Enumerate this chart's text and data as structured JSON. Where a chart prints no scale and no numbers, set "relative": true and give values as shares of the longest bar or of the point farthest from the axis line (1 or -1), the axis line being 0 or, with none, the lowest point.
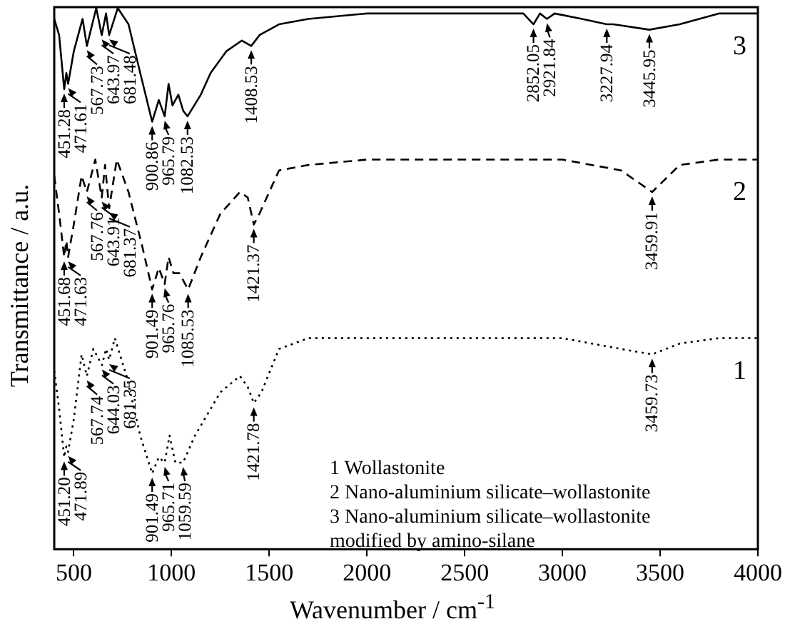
{
  "chart_data": {
    "type": "line",
    "xlabel": "Wavenumber / cm$^{-1}$",
    "ylabel": "Transmittance / a.u.",
    "relative": true,
    "xlim": [
      400,
      4000
    ],
    "xticks": [
      500,
      1000,
      1500,
      2000,
      2500,
      3000,
      3500,
      4000
    ],
    "grid": false,
    "legend": false,
    "marker": "none",
    "series": [
      {
        "name": "3",
        "color": "#000000",
        "line_style": "solid",
        "x": [
          400,
          425,
          451,
          462,
          471,
          500,
          545,
          567,
          615,
          643,
          665,
          681,
          725,
          780,
          840,
          901,
          935,
          965,
          985,
          1005,
          1035,
          1060,
          1082,
          1150,
          1200,
          1280,
          1360,
          1408,
          1450,
          1550,
          1700,
          2000,
          2500,
          2800,
          2852,
          2885,
          2921,
          2960,
          3100,
          3227,
          3260,
          3445,
          3600,
          3800,
          4000
        ],
        "values": [
          0.98,
          0.95,
          0.85,
          0.88,
          0.86,
          0.92,
          0.98,
          0.93,
          1.0,
          0.95,
          0.99,
          0.95,
          1.0,
          0.97,
          0.88,
          0.79,
          0.83,
          0.8,
          0.86,
          0.82,
          0.84,
          0.81,
          0.8,
          0.84,
          0.88,
          0.92,
          0.94,
          0.93,
          0.95,
          0.97,
          0.98,
          0.99,
          0.99,
          0.99,
          0.97,
          0.99,
          0.98,
          0.99,
          0.98,
          0.97,
          0.97,
          0.96,
          0.97,
          0.99,
          0.99
        ]
      },
      {
        "name": "2",
        "color": "#000000",
        "line_style": "dashed",
        "x": [
          400,
          425,
          451,
          462,
          471,
          500,
          540,
          567,
          610,
          643,
          660,
          681,
          720,
          780,
          850,
          901,
          935,
          965,
          985,
          1010,
          1040,
          1085,
          1150,
          1250,
          1350,
          1390,
          1421,
          1450,
          1550,
          1700,
          2000,
          2500,
          3000,
          3300,
          3459,
          3600,
          3800,
          4000
        ],
        "values": [
          0.69,
          0.62,
          0.54,
          0.57,
          0.54,
          0.6,
          0.69,
          0.66,
          0.72,
          0.65,
          0.71,
          0.63,
          0.72,
          0.66,
          0.56,
          0.48,
          0.52,
          0.49,
          0.54,
          0.51,
          0.51,
          0.48,
          0.54,
          0.62,
          0.66,
          0.65,
          0.6,
          0.62,
          0.7,
          0.71,
          0.72,
          0.72,
          0.72,
          0.7,
          0.66,
          0.71,
          0.72,
          0.72
        ]
      },
      {
        "name": "1",
        "color": "#000000",
        "line_style": "dotted",
        "x": [
          400,
          425,
          451,
          462,
          471,
          500,
          540,
          567,
          600,
          644,
          665,
          681,
          710,
          770,
          840,
          901,
          935,
          965,
          990,
          1020,
          1059,
          1120,
          1250,
          1350,
          1390,
          1421,
          1460,
          1550,
          1700,
          2000,
          2500,
          3000,
          3300,
          3459,
          3600,
          3800,
          4000
        ],
        "values": [
          0.33,
          0.26,
          0.17,
          0.19,
          0.18,
          0.24,
          0.36,
          0.32,
          0.37,
          0.34,
          0.37,
          0.35,
          0.39,
          0.32,
          0.21,
          0.14,
          0.17,
          0.16,
          0.21,
          0.16,
          0.16,
          0.21,
          0.29,
          0.32,
          0.3,
          0.27,
          0.29,
          0.37,
          0.39,
          0.39,
          0.39,
          0.39,
          0.37,
          0.36,
          0.38,
          0.39,
          0.39
        ]
      }
    ],
    "annotations": [
      {
        "text": "451.28",
        "x": 451,
        "y": 0.85
      },
      {
        "text": "471.61",
        "x": 471,
        "y": 0.86
      },
      {
        "text": "567.73",
        "x": 567,
        "y": 0.93
      },
      {
        "text": "643.97",
        "x": 643,
        "y": 0.95
      },
      {
        "text": "681.48",
        "x": 681,
        "y": 0.95
      },
      {
        "text": "900.86",
        "x": 901,
        "y": 0.79
      },
      {
        "text": "965.79",
        "x": 965,
        "y": 0.8
      },
      {
        "text": "1082.53",
        "x": 1082,
        "y": 0.8
      },
      {
        "text": "1408.53",
        "x": 1408,
        "y": 0.93
      },
      {
        "text": "2852.05",
        "x": 2852,
        "y": 0.97
      },
      {
        "text": "2921.84",
        "x": 2921,
        "y": 0.98
      },
      {
        "text": "3227.94",
        "x": 3227,
        "y": 0.97
      },
      {
        "text": "3445.95",
        "x": 3445,
        "y": 0.96
      },
      {
        "text": "451.68",
        "x": 451,
        "y": 0.54
      },
      {
        "text": "471.63",
        "x": 471,
        "y": 0.54
      },
      {
        "text": "567.76",
        "x": 567,
        "y": 0.66
      },
      {
        "text": "643.91",
        "x": 643,
        "y": 0.65
      },
      {
        "text": "681.37",
        "x": 681,
        "y": 0.63
      },
      {
        "text": "901.49",
        "x": 901,
        "y": 0.48
      },
      {
        "text": "965.76",
        "x": 965,
        "y": 0.49
      },
      {
        "text": "1085.53",
        "x": 1085,
        "y": 0.48
      },
      {
        "text": "1421.37",
        "x": 1421,
        "y": 0.6
      },
      {
        "text": "3459.91",
        "x": 3459,
        "y": 0.66
      },
      {
        "text": "451.20",
        "x": 451,
        "y": 0.17
      },
      {
        "text": "471.89",
        "x": 471,
        "y": 0.18
      },
      {
        "text": "567.74",
        "x": 567,
        "y": 0.32
      },
      {
        "text": "644.03",
        "x": 644,
        "y": 0.34
      },
      {
        "text": "681.35",
        "x": 681,
        "y": 0.35
      },
      {
        "text": "901.49",
        "x": 901,
        "y": 0.14
      },
      {
        "text": "965.71",
        "x": 965,
        "y": 0.16
      },
      {
        "text": "1059.59",
        "x": 1059,
        "y": 0.16
      },
      {
        "text": "1421.78",
        "x": 1421,
        "y": 0.27
      },
      {
        "text": "3459.73",
        "x": 3459,
        "y": 0.36
      },
      "1 Wollastonite",
      "2 Nano-aluminium silicate–wollastonite",
      "3 Nano-aluminium silicate–wollastonite\nmodified by amino-silane"
    ]
  }
}
